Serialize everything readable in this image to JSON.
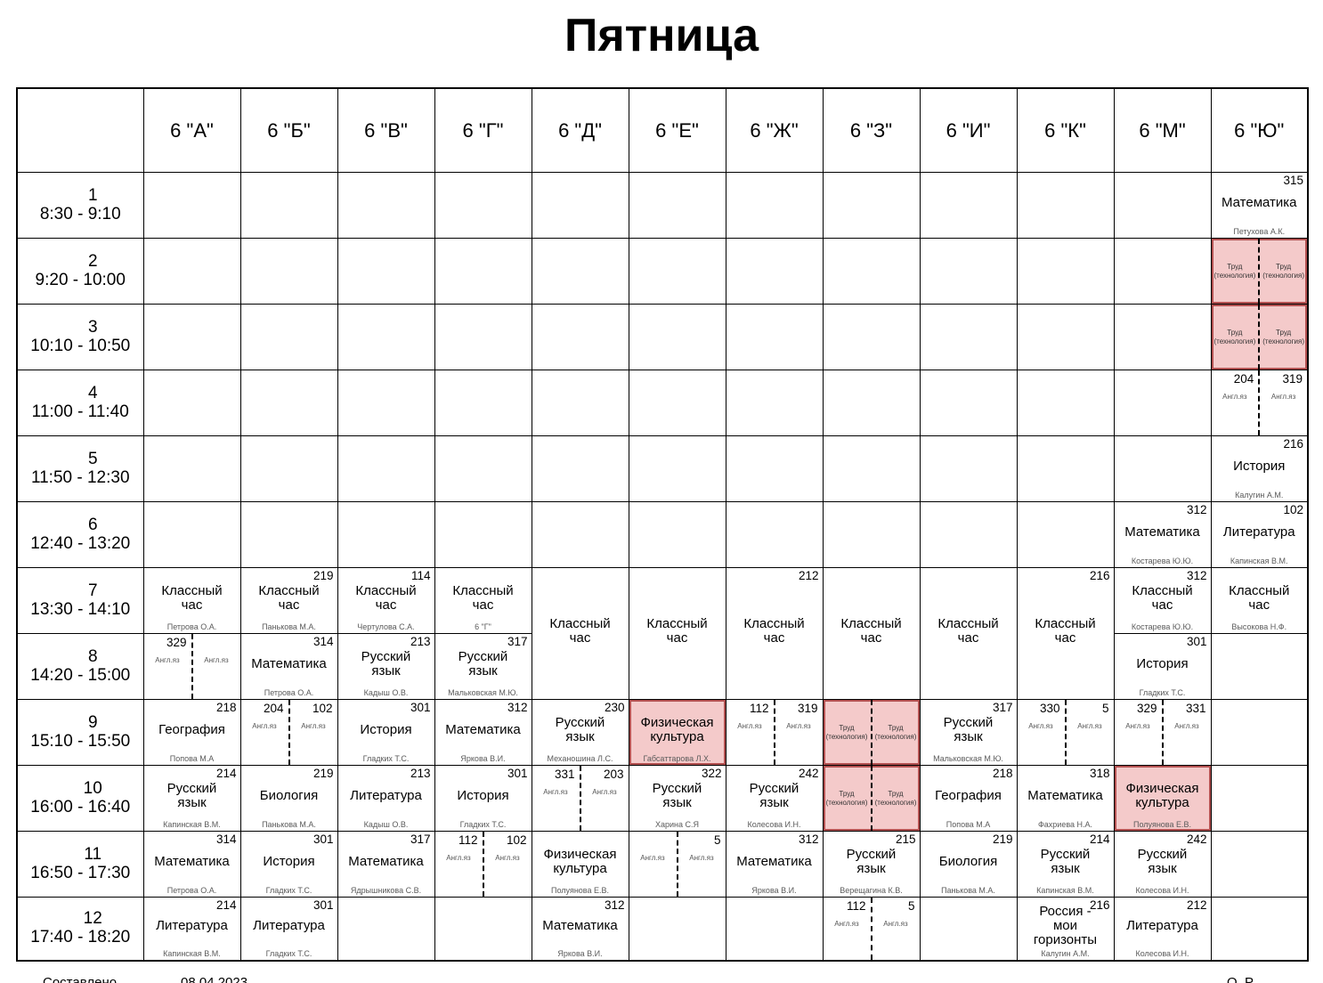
{
  "title": "Пятница",
  "colors": {
    "pink_bg": "#F4CACA",
    "pink_border": "#B25050"
  },
  "footer": {
    "left": "Составлено",
    "date": "08.04.2023",
    "right": "О. Р"
  },
  "table": {
    "columns": [
      "6 \"А\"",
      "6 \"Б\"",
      "6 \"В\"",
      "6 \"Г\"",
      "6 \"Д\"",
      "6 \"Е\"",
      "6 \"Ж\"",
      "6 \"З\"",
      "6 \"И\"",
      "6 \"К\"",
      "6 \"М\"",
      "6 \"Ю\""
    ],
    "rows": [
      {
        "num": "1",
        "time": "8:30 - 9:10",
        "cells": [
          null,
          null,
          null,
          null,
          null,
          null,
          null,
          null,
          null,
          null,
          null,
          {
            "room": "315",
            "subj": "Математика",
            "teacher": "Петухова А.К."
          }
        ]
      },
      {
        "num": "2",
        "time": "9:20 - 10:00",
        "cells": [
          null,
          null,
          null,
          null,
          null,
          null,
          null,
          null,
          null,
          null,
          null,
          {
            "split": true,
            "pink": true,
            "halves": [
              {
                "lab": "Труд (технология)"
              },
              {
                "lab": "Труд (технология)"
              }
            ]
          }
        ]
      },
      {
        "num": "3",
        "time": "10:10 - 10:50",
        "cells": [
          null,
          null,
          null,
          null,
          null,
          null,
          null,
          null,
          null,
          null,
          null,
          {
            "split": true,
            "pink": true,
            "halves": [
              {
                "lab": "Труд (технология)"
              },
              {
                "lab": "Труд (технология)"
              }
            ]
          }
        ]
      },
      {
        "num": "4",
        "time": "11:00 - 11:40",
        "cells": [
          null,
          null,
          null,
          null,
          null,
          null,
          null,
          null,
          null,
          null,
          null,
          {
            "split": true,
            "halves": [
              {
                "room": "204",
                "lab": "Англ.яз"
              },
              {
                "room": "319",
                "lab": "Англ.яз"
              }
            ]
          }
        ]
      },
      {
        "num": "5",
        "time": "11:50 - 12:30",
        "cells": [
          null,
          null,
          null,
          null,
          null,
          null,
          null,
          null,
          null,
          null,
          null,
          {
            "room": "216",
            "subj": "История",
            "teacher": "Калугин А.М."
          }
        ]
      },
      {
        "num": "6",
        "time": "12:40 - 13:20",
        "cells": [
          null,
          null,
          null,
          null,
          null,
          null,
          null,
          null,
          null,
          null,
          {
            "room": "312",
            "subj": "Математика",
            "teacher": "Костарева Ю.Ю."
          },
          {
            "room": "102",
            "subj": "Литература",
            "teacher": "Капинская В.М."
          }
        ]
      },
      {
        "num": "7",
        "time": "13:30 - 14:10",
        "cells": [
          {
            "subj": "Классный час",
            "teacher": "Петрова О.А."
          },
          {
            "room": "219",
            "subj": "Классный час",
            "teacher": "Панькова М.А."
          },
          {
            "room": "114",
            "subj": "Классный час",
            "teacher": "Чертулова С.А."
          },
          {
            "subj": "Классный час",
            "teacher": "6 \"Г\""
          },
          {
            "subj": "Классный час",
            "span": 2
          },
          {
            "subj": "Классный час",
            "span": 2
          },
          {
            "room": "212",
            "subj": "Классный час",
            "span": 2
          },
          {
            "subj": "Классный час",
            "span": 2
          },
          {
            "subj": "Классный час",
            "span": 2
          },
          {
            "room": "216",
            "subj": "Классный час",
            "span": 2
          },
          {
            "room": "312",
            "subj": "Классный час",
            "teacher": "Костарева Ю.Ю."
          },
          {
            "subj": "Классный час",
            "teacher": "Высокова Н.Ф."
          }
        ]
      },
      {
        "num": "8",
        "time": "14:20 - 15:00",
        "cells": [
          {
            "split": true,
            "halves": [
              {
                "room": "329",
                "lab": "Англ.яз"
              },
              {
                "lab": "Англ.яз"
              }
            ]
          },
          {
            "room": "314",
            "subj": "Математика",
            "teacher": "Петрова О.А."
          },
          {
            "room": "213",
            "subj": "Русский язык",
            "teacher": "Кадыш О.В."
          },
          {
            "room": "317",
            "subj": "Русский язык",
            "teacher": "Мальковская М.Ю."
          },
          {
            "cov": true
          },
          {
            "cov": true
          },
          {
            "cov": true
          },
          {
            "cov": true
          },
          {
            "cov": true
          },
          {
            "cov": true
          },
          {
            "room": "301",
            "subj": "История",
            "teacher": "Гладких Т.С."
          },
          null
        ]
      },
      {
        "num": "9",
        "time": "15:10 - 15:50",
        "cells": [
          {
            "room": "218",
            "subj": "География",
            "teacher": "Попова М.А"
          },
          {
            "split": true,
            "halves": [
              {
                "room": "204",
                "lab": "Англ.яз"
              },
              {
                "room": "102",
                "lab": "Англ.яз"
              }
            ]
          },
          {
            "room": "301",
            "subj": "История",
            "teacher": "Гладких Т.С."
          },
          {
            "room": "312",
            "subj": "Математика",
            "teacher": "Яркова В.И."
          },
          {
            "room": "230",
            "subj": "Русский язык",
            "teacher": "Механошина Л.С."
          },
          {
            "subj": "Физическая культура",
            "teacher": "Габсаттарова Л.Х.",
            "pink": true
          },
          {
            "split": true,
            "halves": [
              {
                "room": "112",
                "lab": "Англ.яз"
              },
              {
                "room": "319",
                "lab": "Англ.яз"
              }
            ]
          },
          {
            "split": true,
            "pink": true,
            "halves": [
              {
                "lab": "Труд (технология)"
              },
              {
                "lab": "Труд (технология)"
              }
            ]
          },
          {
            "room": "317",
            "subj": "Русский язык",
            "teacher": "Мальковская М.Ю."
          },
          {
            "split": true,
            "halves": [
              {
                "room": "330",
                "lab": "Англ.яз"
              },
              {
                "room": "5",
                "lab": "Англ.яз"
              }
            ]
          },
          {
            "split": true,
            "halves": [
              {
                "room": "329",
                "lab": "Англ.яз"
              },
              {
                "room": "331",
                "lab": "Англ.яз"
              }
            ]
          },
          null
        ]
      },
      {
        "num": "10",
        "time": "16:00 - 16:40",
        "cells": [
          {
            "room": "214",
            "subj": "Русский язык",
            "teacher": "Капинская В.М."
          },
          {
            "room": "219",
            "subj": "Биология",
            "teacher": "Панькова М.А."
          },
          {
            "room": "213",
            "subj": "Литература",
            "teacher": "Кадыш О.В."
          },
          {
            "room": "301",
            "subj": "История",
            "teacher": "Гладких Т.С."
          },
          {
            "split": true,
            "halves": [
              {
                "room": "331",
                "lab": "Англ.яз"
              },
              {
                "room": "203",
                "lab": "Англ.яз"
              }
            ]
          },
          {
            "room": "322",
            "subj": "Русский язык",
            "teacher": "Харина С.Я"
          },
          {
            "room": "242",
            "subj": "Русский язык",
            "teacher": "Колесова И.Н."
          },
          {
            "split": true,
            "pink": true,
            "halves": [
              {
                "lab": "Труд (технология)"
              },
              {
                "lab": "Труд (технология)"
              }
            ]
          },
          {
            "room": "218",
            "subj": "География",
            "teacher": "Попова М.А"
          },
          {
            "room": "318",
            "subj": "Математика",
            "teacher": "Фахриева Н.А."
          },
          {
            "subj": "Физическая культура",
            "teacher": "Полуянова Е.В.",
            "pink": true
          },
          null
        ]
      },
      {
        "num": "11",
        "time": "16:50 - 17:30",
        "cells": [
          {
            "room": "314",
            "subj": "Математика",
            "teacher": "Петрова О.А."
          },
          {
            "room": "301",
            "subj": "История",
            "teacher": "Гладких Т.С."
          },
          {
            "room": "317",
            "subj": "Математика",
            "teacher": "Ядрышникова С.В."
          },
          {
            "split": true,
            "halves": [
              {
                "room": "112",
                "lab": "Англ.яз"
              },
              {
                "room": "102",
                "lab": "Англ.яз"
              }
            ]
          },
          {
            "subj": "Физическая культура",
            "teacher": "Полуянова Е.В."
          },
          {
            "split": true,
            "halves": [
              {
                "lab": "Англ.яз"
              },
              {
                "room": "5",
                "lab": "Англ.яз"
              }
            ]
          },
          {
            "room": "312",
            "subj": "Математика",
            "teacher": "Яркова В.И."
          },
          {
            "room": "215",
            "subj": "Русский язык",
            "teacher": "Верещагина К.В."
          },
          {
            "room": "219",
            "subj": "Биология",
            "teacher": "Панькова М.А."
          },
          {
            "room": "214",
            "subj": "Русский язык",
            "teacher": "Капинская В.М."
          },
          {
            "room": "242",
            "subj": "Русский язык",
            "teacher": "Колесова И.Н."
          },
          null
        ]
      },
      {
        "num": "12",
        "time": "17:40 - 18:20",
        "cells": [
          {
            "room": "214",
            "subj": "Литература",
            "teacher": "Капинская В.М."
          },
          {
            "room": "301",
            "subj": "Литература",
            "teacher": "Гладких Т.С."
          },
          null,
          null,
          {
            "room": "312",
            "subj": "Математика",
            "teacher": "Яркова В.И."
          },
          null,
          null,
          {
            "split": true,
            "halves": [
              {
                "room": "112",
                "lab": "Англ.яз"
              },
              {
                "room": "5",
                "lab": "Англ.яз"
              }
            ]
          },
          null,
          {
            "room": "216",
            "subj": "Россия - мои горизонты",
            "teacher": "Калугин А.М."
          },
          {
            "room": "212",
            "subj": "Литература",
            "teacher": "Колесова И.Н."
          },
          null
        ]
      }
    ]
  }
}
